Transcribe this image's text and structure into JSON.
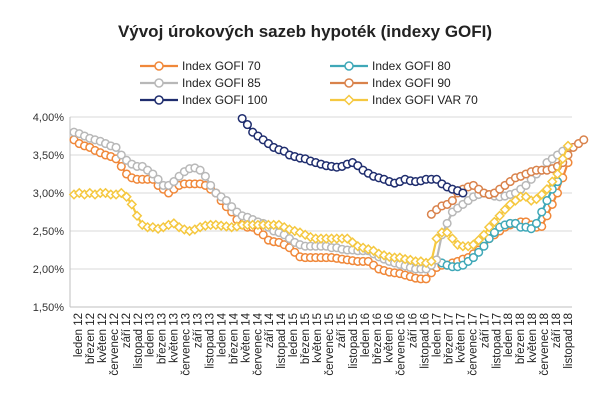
{
  "chart_data": {
    "type": "line",
    "title": "Vývoj úrokových sazeb hypoték (indexy GOFI)",
    "xlabel": "",
    "ylabel": "",
    "ylim": [
      0.015,
      0.04
    ],
    "yticks": [
      "1,50%",
      "2,00%",
      "2,50%",
      "3,00%",
      "3,50%",
      "4,00%"
    ],
    "grid": true,
    "legend_position": "top",
    "tick_labels": [
      "leden 12",
      "březen 12",
      "květen 12",
      "červenec 12",
      "září 12",
      "listopad 12",
      "leden 13",
      "březen 13",
      "květen 13",
      "červenec 13",
      "září 13",
      "listopad 13",
      "leden 14",
      "březen 14",
      "květen 14",
      "červenec 14",
      "září 14",
      "listopad 14",
      "leden 15",
      "březen 15",
      "květen 15",
      "červenec 15",
      "září 15",
      "listopad 15",
      "leden 16",
      "březen 16",
      "květen 16",
      "červenec 16",
      "září 16",
      "listopad 16",
      "leden 17",
      "březen 17",
      "květen 17",
      "červenec 17",
      "září 17",
      "listopad 17",
      "leden 18",
      "březen 18",
      "květen 18",
      "červenec 18",
      "září 18",
      "listopad 18"
    ],
    "series": [
      {
        "name": "Index GOFI 70",
        "color": "#f0883a",
        "marker": "circle",
        "start": 0,
        "values": [
          0.037,
          0.0365,
          0.0362,
          0.036,
          0.0356,
          0.0353,
          0.035,
          0.0348,
          0.0345,
          0.0335,
          0.0325,
          0.032,
          0.0318,
          0.0318,
          0.0318,
          0.0318,
          0.031,
          0.0305,
          0.03,
          0.0305,
          0.031,
          0.0312,
          0.0312,
          0.0312,
          0.0312,
          0.031,
          0.0305,
          0.03,
          0.029,
          0.0282,
          0.0275,
          0.0265,
          0.0258,
          0.0255,
          0.0255,
          0.025,
          0.0245,
          0.0238,
          0.0236,
          0.0235,
          0.0232,
          0.0228,
          0.0222,
          0.0216,
          0.0215,
          0.0215,
          0.0215,
          0.0215,
          0.0215,
          0.0215,
          0.0214,
          0.0213,
          0.0212,
          0.0211,
          0.021,
          0.021,
          0.021,
          0.0205,
          0.02,
          0.0198,
          0.0196,
          0.0195,
          0.0194,
          0.0192,
          0.019,
          0.0188,
          0.0187,
          0.0187,
          0.0195,
          0.0202,
          0.0205,
          0.0205,
          0.0208,
          0.021,
          0.0213,
          0.0215,
          0.022,
          0.0225,
          0.0235,
          0.024,
          0.0245,
          0.025,
          0.0255,
          0.0258,
          0.026,
          0.0262,
          0.0262,
          0.0258,
          0.0255,
          0.0256,
          0.027,
          0.0285,
          0.03,
          0.032,
          0.034
        ]
      },
      {
        "name": "Index GOFI 80",
        "color": "#3fa8b8",
        "marker": "circle",
        "start": 70,
        "values": [
          0.0208,
          0.0205,
          0.0203,
          0.0203,
          0.0205,
          0.021,
          0.0215,
          0.0222,
          0.023,
          0.024,
          0.0248,
          0.0255,
          0.0258,
          0.026,
          0.026,
          0.0255,
          0.0255,
          0.0253,
          0.026,
          0.0275,
          0.029,
          0.0305,
          0.0315
        ]
      },
      {
        "name": "Index GOFI 85",
        "color": "#b8b8b8",
        "marker": "circle",
        "start": 0,
        "values": [
          0.038,
          0.0378,
          0.0375,
          0.0372,
          0.037,
          0.0368,
          0.0365,
          0.0362,
          0.036,
          0.035,
          0.0343,
          0.0338,
          0.0335,
          0.0335,
          0.033,
          0.0325,
          0.0318,
          0.031,
          0.031,
          0.0315,
          0.0322,
          0.0328,
          0.0332,
          0.0333,
          0.033,
          0.0322,
          0.031,
          0.03,
          0.0295,
          0.029,
          0.0282,
          0.0275,
          0.027,
          0.0268,
          0.0265,
          0.0262,
          0.026,
          0.0255,
          0.025,
          0.0248,
          0.0245,
          0.024,
          0.0235,
          0.0232,
          0.023,
          0.023,
          0.023,
          0.023,
          0.023,
          0.0228,
          0.0228,
          0.0226,
          0.0225,
          0.0225,
          0.0224,
          0.0224,
          0.0224,
          0.022,
          0.0216,
          0.0213,
          0.021,
          0.0208,
          0.0206,
          0.0204,
          0.0202,
          0.02,
          0.02,
          0.02,
          0.0205,
          0.0212,
          0.0245,
          0.026,
          0.0275,
          0.028,
          0.0285,
          0.029,
          0.0295,
          0.0298,
          0.03,
          0.0298,
          0.0296,
          0.0295,
          0.0296,
          0.0298,
          0.03,
          0.0305,
          0.031,
          0.0318,
          0.0325,
          0.033,
          0.034,
          0.0345,
          0.035,
          0.0355,
          0.036
        ]
      },
      {
        "name": "Index GOFI 90",
        "color": "#d9824b",
        "marker": "circle",
        "start": 68,
        "values": [
          0.0272,
          0.0278,
          0.0283,
          0.0285,
          0.029,
          0.03,
          0.0305,
          0.0308,
          0.031,
          0.0305,
          0.03,
          0.0298,
          0.03,
          0.0305,
          0.031,
          0.0315,
          0.032,
          0.0322,
          0.0325,
          0.0328,
          0.033,
          0.033,
          0.033,
          0.0332,
          0.0335,
          0.034,
          0.035,
          0.036,
          0.0365,
          0.037
        ]
      },
      {
        "name": "Index GOFI 100",
        "color": "#1f2d6e",
        "marker": "circle",
        "start": 32,
        "values": [
          0.0398,
          0.039,
          0.038,
          0.0375,
          0.037,
          0.0365,
          0.036,
          0.0357,
          0.0355,
          0.035,
          0.0348,
          0.0346,
          0.0345,
          0.0342,
          0.034,
          0.0338,
          0.0336,
          0.0335,
          0.0334,
          0.0335,
          0.0338,
          0.034,
          0.0336,
          0.033,
          0.0326,
          0.0322,
          0.032,
          0.0318,
          0.0315,
          0.0313,
          0.0315,
          0.0318,
          0.0316,
          0.0315,
          0.0316,
          0.0318,
          0.0318,
          0.0318,
          0.0312,
          0.0308,
          0.0305,
          0.0303,
          0.03
        ]
      },
      {
        "name": "Index GOFI VAR 70",
        "color": "#f5c840",
        "marker": "diamond",
        "start": 0,
        "values": [
          0.0298,
          0.03,
          0.0298,
          0.03,
          0.0298,
          0.03,
          0.03,
          0.0298,
          0.0298,
          0.03,
          0.0295,
          0.0285,
          0.027,
          0.0258,
          0.0255,
          0.0255,
          0.0253,
          0.0255,
          0.0258,
          0.026,
          0.0255,
          0.0252,
          0.025,
          0.0252,
          0.0255,
          0.0257,
          0.0258,
          0.0258,
          0.0257,
          0.0256,
          0.0255,
          0.0256,
          0.0258,
          0.0258,
          0.0258,
          0.0258,
          0.0258,
          0.0258,
          0.0258,
          0.0258,
          0.0255,
          0.0252,
          0.025,
          0.0248,
          0.0245,
          0.0242,
          0.024,
          0.024,
          0.024,
          0.024,
          0.024,
          0.024,
          0.024,
          0.0235,
          0.023,
          0.0228,
          0.0226,
          0.0224,
          0.022,
          0.0218,
          0.0216,
          0.0215,
          0.0215,
          0.0213,
          0.0212,
          0.021,
          0.021,
          0.0208,
          0.021,
          0.024,
          0.0248,
          0.0248,
          0.024,
          0.0232,
          0.023,
          0.023,
          0.0232,
          0.0238,
          0.0245,
          0.0255,
          0.0262,
          0.027,
          0.0278,
          0.0285,
          0.029,
          0.0295,
          0.0295,
          0.029,
          0.0292,
          0.0298,
          0.0305,
          0.0315,
          0.0325,
          0.0345,
          0.0362
        ]
      }
    ]
  }
}
